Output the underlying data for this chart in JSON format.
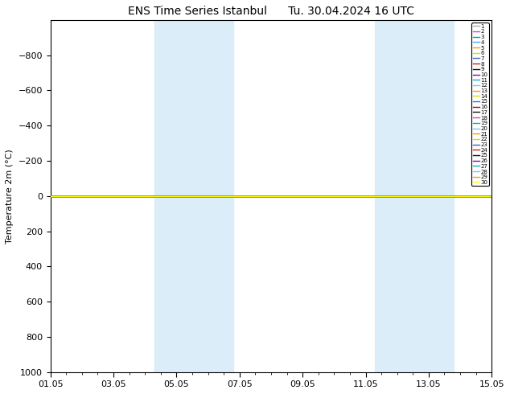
{
  "title1": "ENS Time Series Istanbul",
  "title2": "Tu. 30.04.2024 16 UTC",
  "ylabel": "Temperature 2m (°C)",
  "ylim": [
    -1000,
    1000
  ],
  "yticks": [
    -800,
    -600,
    -400,
    -200,
    0,
    200,
    400,
    600,
    800,
    1000
  ],
  "y_inverted": true,
  "xtick_labels": [
    "01.05",
    "03.05",
    "05.05",
    "07.05",
    "09.05",
    "11.05",
    "13.05",
    "15.05"
  ],
  "xtick_positions": [
    0,
    2,
    4,
    6,
    8,
    10,
    12,
    14
  ],
  "x_start": 0,
  "x_end": 14,
  "shade_bands": [
    [
      3.3,
      4.5
    ],
    [
      4.5,
      5.8
    ],
    [
      10.3,
      11.5
    ],
    [
      11.5,
      12.8
    ]
  ],
  "shaded_color": "#daedf8",
  "flat_line_y": 0.0,
  "member_colors": [
    "#aaaaaa",
    "#cc44cc",
    "#00aa77",
    "#44aaff",
    "#ff9900",
    "#dddd00",
    "#3366bb",
    "#cc2200",
    "#111111",
    "#8800cc",
    "#00bbbb",
    "#88bbff",
    "#ff9900",
    "#dddd00",
    "#0088bb",
    "#bb0000",
    "#111111",
    "#cc44cc",
    "#00bb88",
    "#88bbff",
    "#ff9900",
    "#dddd00",
    "#3366bb",
    "#cc2200",
    "#111111",
    "#8800cc",
    "#00bbbb",
    "#88bbff",
    "#ff9900",
    "#ffff00"
  ],
  "n_members": 30,
  "background_color": "#ffffff",
  "title_fontsize": 10,
  "axis_fontsize": 8,
  "tick_fontsize": 8,
  "legend_fontsize": 5
}
